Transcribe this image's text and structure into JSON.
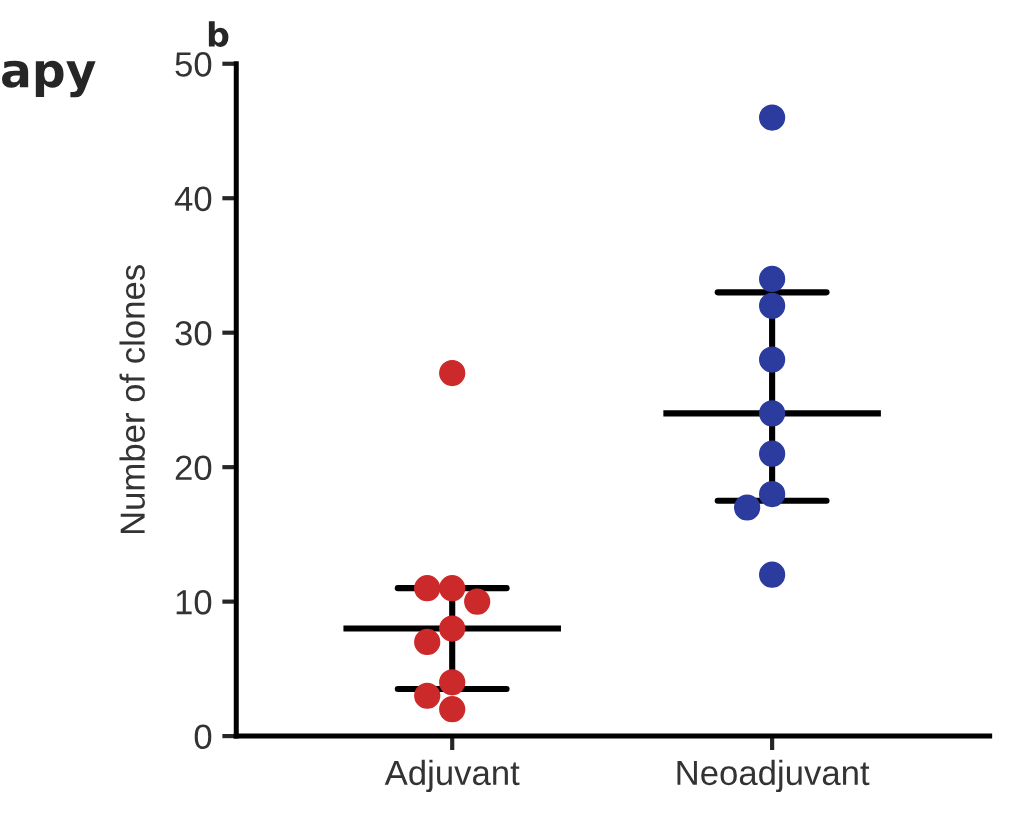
{
  "chart_data": {
    "type": "scatter",
    "ylabel": "Number of clones",
    "categories": [
      "Adjuvant",
      "Neoadjuvant"
    ],
    "ylim": [
      0,
      50
    ],
    "yticks": [
      0,
      10,
      20,
      30,
      40,
      50
    ],
    "annotations": [
      "b",
      "apy"
    ],
    "grid": false,
    "legend": false,
    "marker": "circle",
    "series": [
      {
        "color": "#cc2a2a",
        "x": [
          "Adjuvant",
          "Adjuvant",
          "Adjuvant",
          "Adjuvant",
          "Adjuvant",
          "Adjuvant",
          "Adjuvant",
          "Adjuvant",
          "Adjuvant"
        ],
        "values": [
          27,
          11,
          11,
          10,
          8,
          7,
          4,
          3,
          2
        ]
      },
      {
        "color": "#2b3b9e",
        "x": [
          "Neoadjuvant",
          "Neoadjuvant",
          "Neoadjuvant",
          "Neoadjuvant",
          "Neoadjuvant",
          "Neoadjuvant",
          "Neoadjuvant",
          "Neoadjuvant",
          "Neoadjuvant"
        ],
        "values": [
          46,
          34,
          32,
          28,
          24,
          21,
          18,
          17,
          12
        ]
      },
      {
        "type": "box",
        "color": "#000000",
        "boxes": [
          {
            "low": 3.5,
            "q1": 8,
            "median": 8,
            "q3": 8,
            "high": 11
          },
          {
            "low": 17.5,
            "q1": 24,
            "median": 24,
            "q3": 24,
            "high": 33
          }
        ]
      }
    ]
  }
}
